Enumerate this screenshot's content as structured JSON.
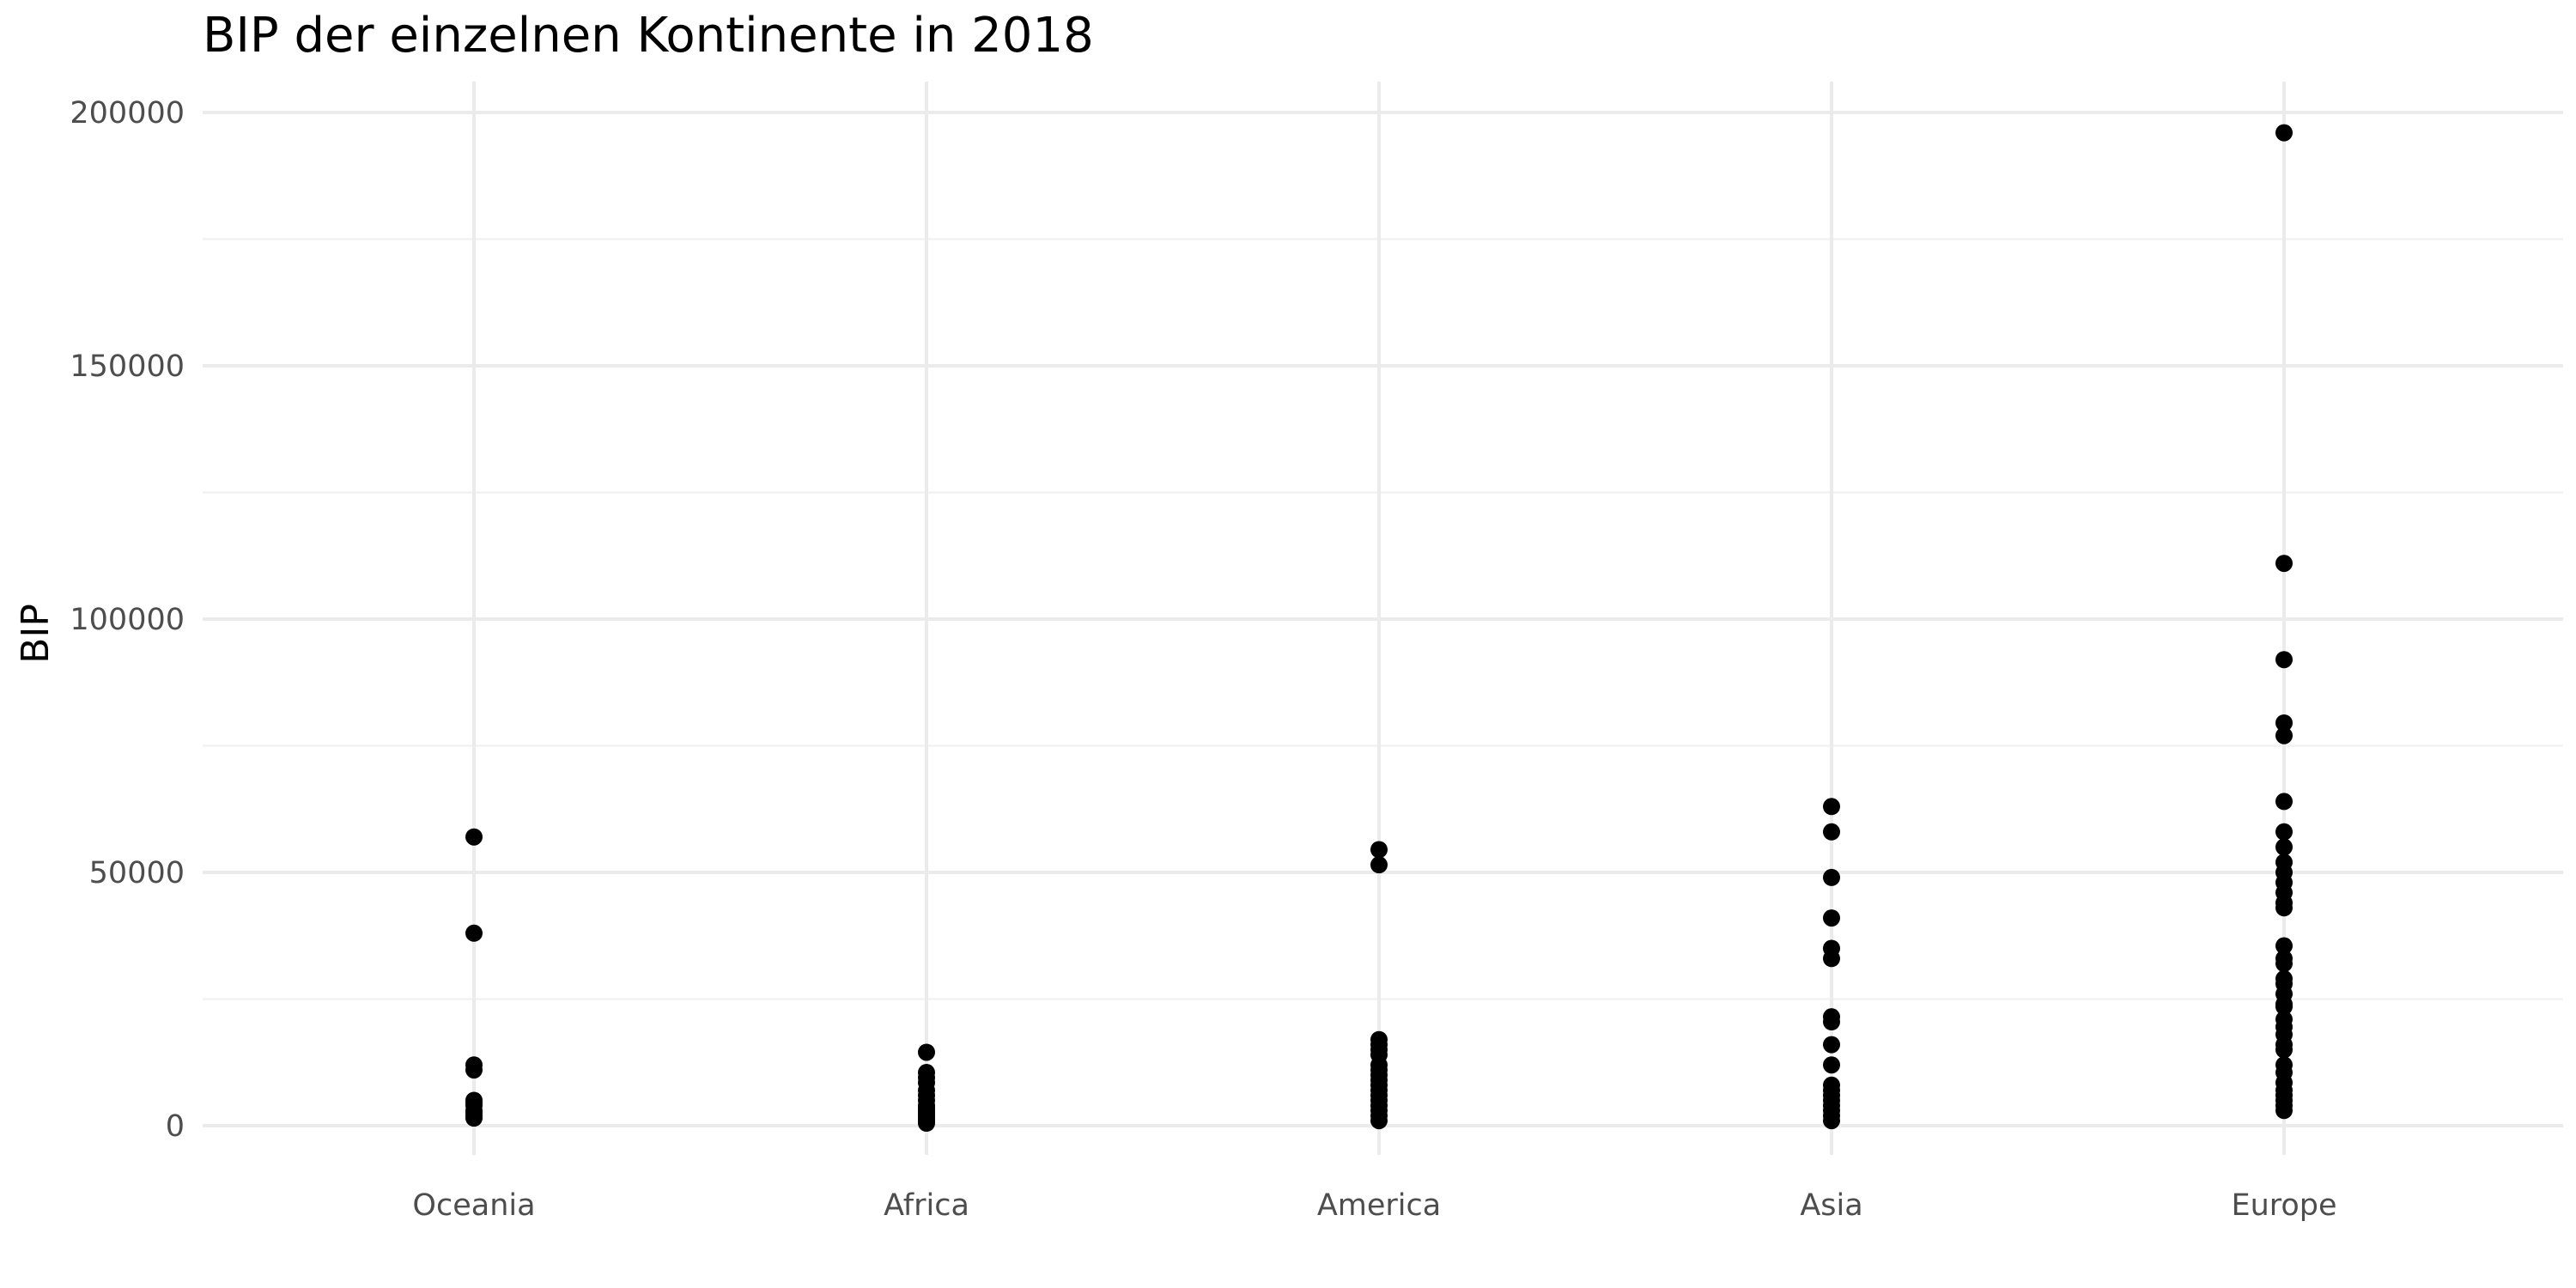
{
  "chart_data": {
    "type": "scatter",
    "title": "BIP der einzelnen Kontinente in 2018",
    "xlabel": "",
    "ylabel": "BIP",
    "categories": [
      "Oceania",
      "Africa",
      "America",
      "Asia",
      "Europe"
    ],
    "y_ticks": [
      0,
      50000,
      100000,
      150000,
      200000
    ],
    "y_tick_labels": [
      "0",
      "50000",
      "100000",
      "150000",
      "200000"
    ],
    "ylim": [
      -2500,
      205000
    ],
    "grid": true,
    "point_color": "#000000",
    "points": {
      "Oceania": [
        57000,
        38000,
        12000,
        11000,
        5000,
        4500,
        4000,
        3000,
        2500,
        2000,
        1500
      ],
      "Africa": [
        14500,
        10500,
        9500,
        8500,
        7000,
        6000,
        5000,
        4000,
        3500,
        3000,
        2500,
        2000,
        1500,
        1000,
        500
      ],
      "America": [
        54500,
        51500,
        17000,
        16000,
        15000,
        14000,
        12000,
        11000,
        10000,
        9000,
        8000,
        7000,
        6000,
        5000,
        4000,
        3000,
        2000,
        1000
      ],
      "Asia": [
        63000,
        58000,
        49000,
        41000,
        35000,
        33000,
        21500,
        20500,
        16000,
        12000,
        8000,
        7000,
        6000,
        5000,
        4000,
        3000,
        2000,
        1000
      ],
      "Europe": [
        196000,
        111000,
        92000,
        79500,
        77000,
        64000,
        58000,
        55000,
        52000,
        50000,
        48000,
        46000,
        44000,
        43000,
        35500,
        33000,
        32000,
        29000,
        28000,
        26000,
        24000,
        23500,
        21000,
        19500,
        18000,
        16000,
        15000,
        12000,
        10500,
        8500,
        7000,
        6000,
        5000,
        4000,
        3000
      ]
    }
  }
}
